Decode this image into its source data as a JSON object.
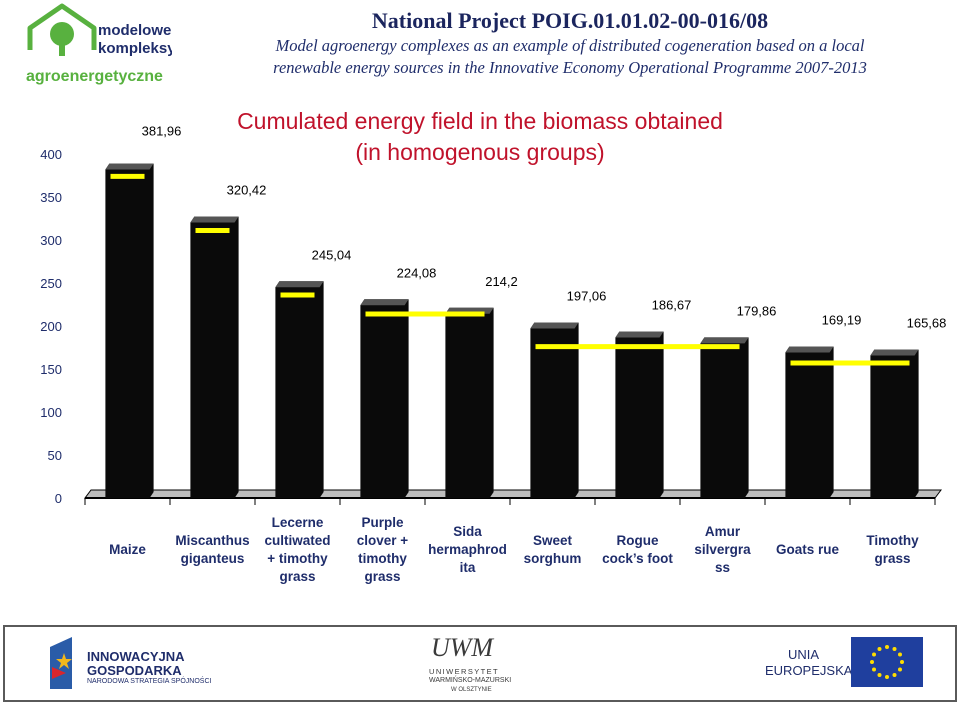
{
  "header": {
    "logo_text_1": "modelowe",
    "logo_text_2": "kompleksy",
    "logo_text_3": "agroenergetyczne",
    "project_title": "National Project POIG.01.01.02-00-016/08",
    "subtitle_line_1": "Model agroenergy complexes as an example of distributed cogeneration based on a local",
    "subtitle_line_2": "renewable energy sources in the Innovative Economy Operational Programme 2007-2013"
  },
  "colors": {
    "bar": "#0a0a0a",
    "marker": "#ffff00",
    "title": "#c0122b",
    "header_text": "#1f2d6b",
    "category_text": "#1f2d6b"
  },
  "chart_data": {
    "type": "bar",
    "title_line_1": "Cumulated energy field in the biomass obtained",
    "title_line_2": "(in homogenous groups)",
    "categories": [
      [
        "Maize"
      ],
      [
        "Miscanthus",
        "giganteus"
      ],
      [
        "Lecerne",
        "cultiwated",
        "+ timothy",
        "grass"
      ],
      [
        "Purple",
        "clover +",
        "timothy",
        "grass"
      ],
      [
        "Sida",
        "hermaphrod",
        "ita"
      ],
      [
        "Sweet",
        "sorghum"
      ],
      [
        "Rogue",
        "cock’s foot"
      ],
      [
        "Amur",
        "silvergra",
        "ss"
      ],
      [
        "Goats rue"
      ],
      [
        "Timothy",
        "grass"
      ]
    ],
    "values": [
      381.96,
      320.42,
      245.04,
      224.08,
      214.2,
      197.06,
      186.67,
      179.86,
      169.19,
      165.68
    ],
    "value_labels": [
      "381,96",
      "320,42",
      "245,04",
      "224,08",
      "214,2",
      "197,06",
      "186,67",
      "179,86",
      "169,19",
      "165,68"
    ],
    "group_means": [
      {
        "value": 374,
        "from": 0,
        "to": 0
      },
      {
        "value": 311,
        "from": 1,
        "to": 1
      },
      {
        "value": 236,
        "from": 2,
        "to": 2
      },
      {
        "value": 214,
        "from": 3,
        "to": 4
      },
      {
        "value": 176,
        "from": 5,
        "to": 7
      },
      {
        "value": 157,
        "from": 8,
        "to": 9
      }
    ],
    "ylim": [
      0,
      400
    ],
    "yticks": [
      "0",
      "50",
      "100",
      "150",
      "200",
      "250",
      "300",
      "350",
      "400"
    ],
    "legend": "none"
  },
  "footer": {
    "logo1_line_1": "INNOWACYJNA",
    "logo1_line_2": "GOSPODARKA",
    "logo1_line_3": "NARODOWA STRATEGIA SPÓJNOŚCI",
    "logo2_line_1": "UWM",
    "logo2_line_2": "UNIWERSYTET",
    "logo2_line_3": "WARMIŃSKO-MAZURSKI",
    "logo2_line_4": "W OLSZTYNIE",
    "logo3_line_1": "UNIA",
    "logo3_line_2": "EUROPEJSKA"
  }
}
